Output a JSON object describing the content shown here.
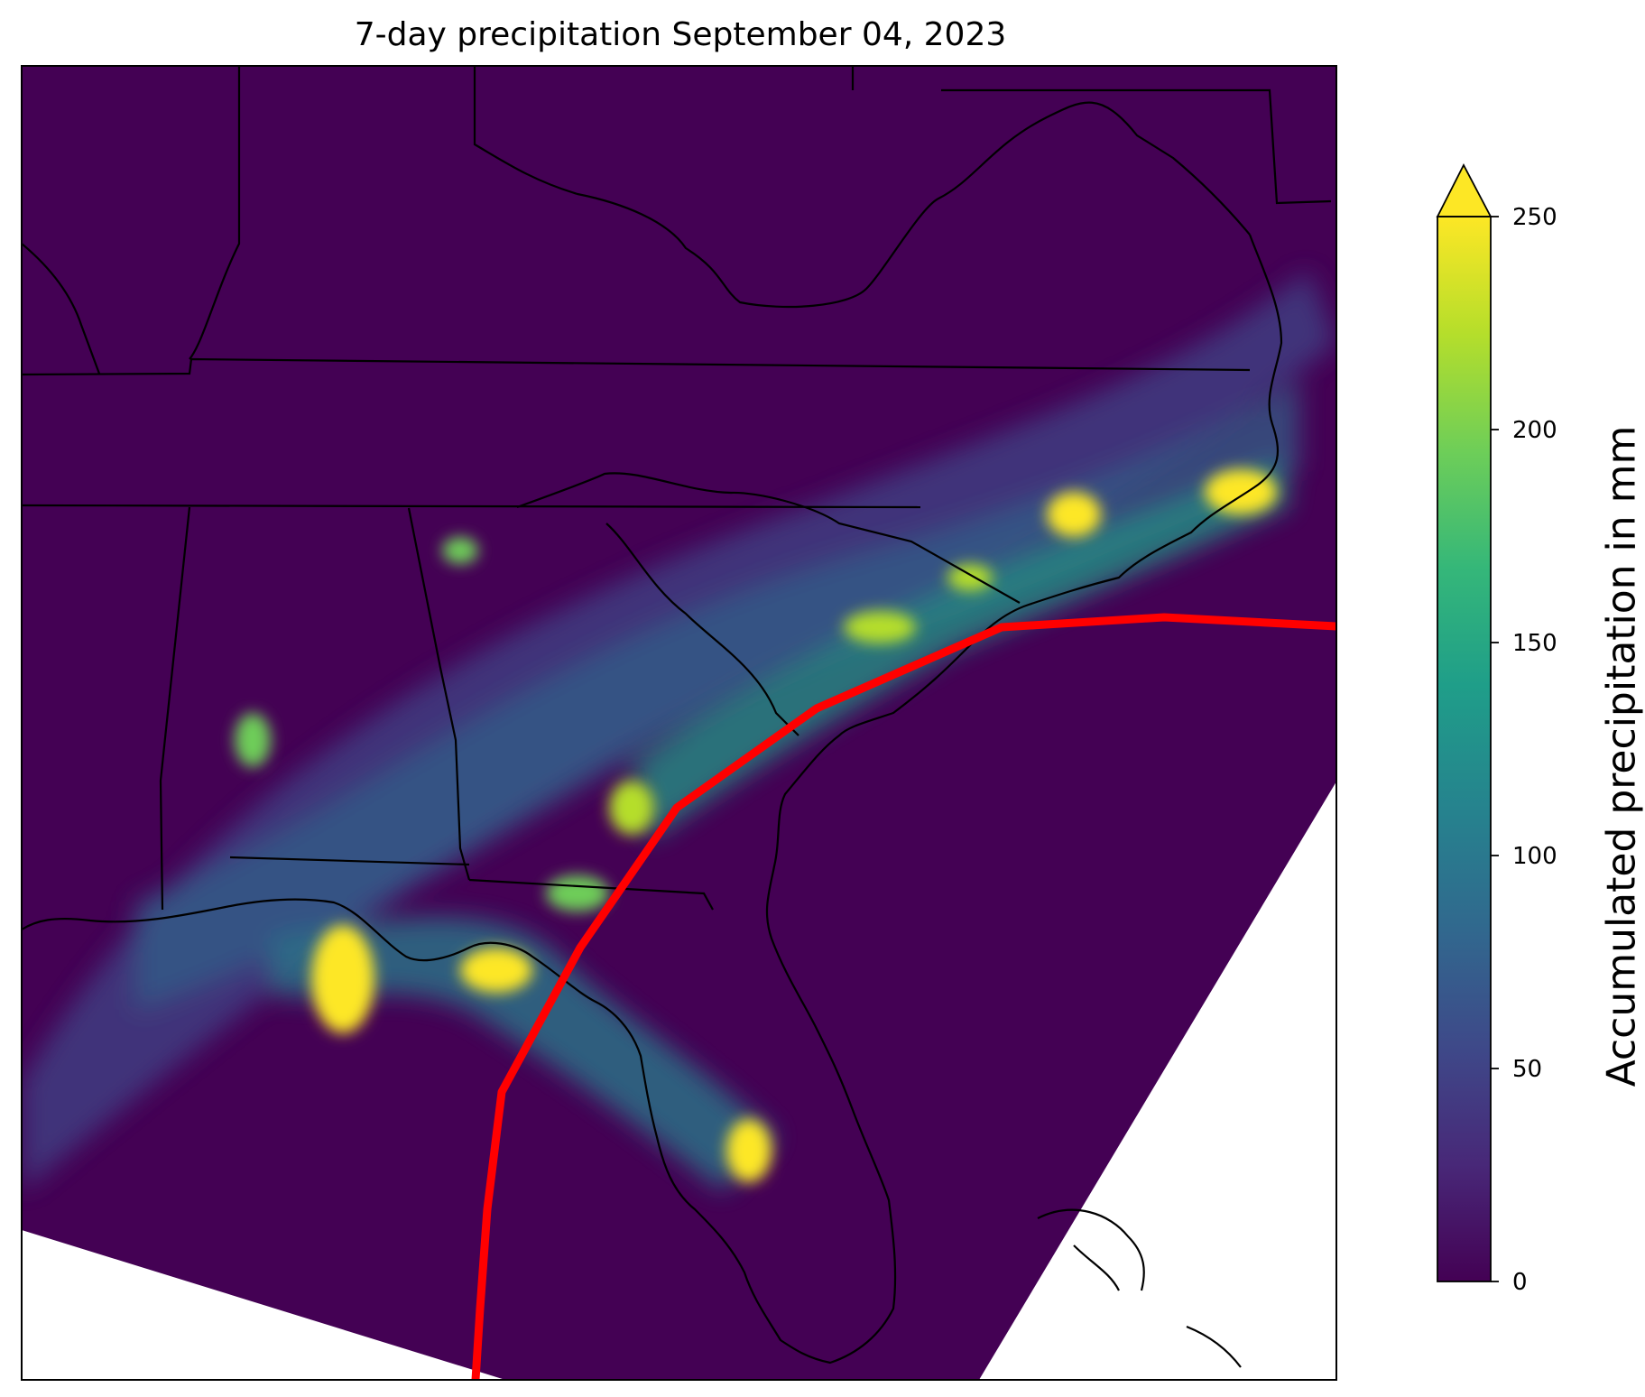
{
  "title": "7-day precipitation September 04, 2023",
  "colorbar": {
    "label": "Accumulated precipitation in mm",
    "ticks": [
      "0",
      "50",
      "100",
      "150",
      "200",
      "250"
    ],
    "min": 0,
    "max": 250,
    "extend": "max",
    "colormap": "viridis",
    "colors": [
      "#440154",
      "#482878",
      "#3e4989",
      "#31688e",
      "#26828e",
      "#1f9e89",
      "#35b779",
      "#6ece58",
      "#b5de2b",
      "#fde725"
    ]
  },
  "track": {
    "color": "#ff0000"
  }
}
